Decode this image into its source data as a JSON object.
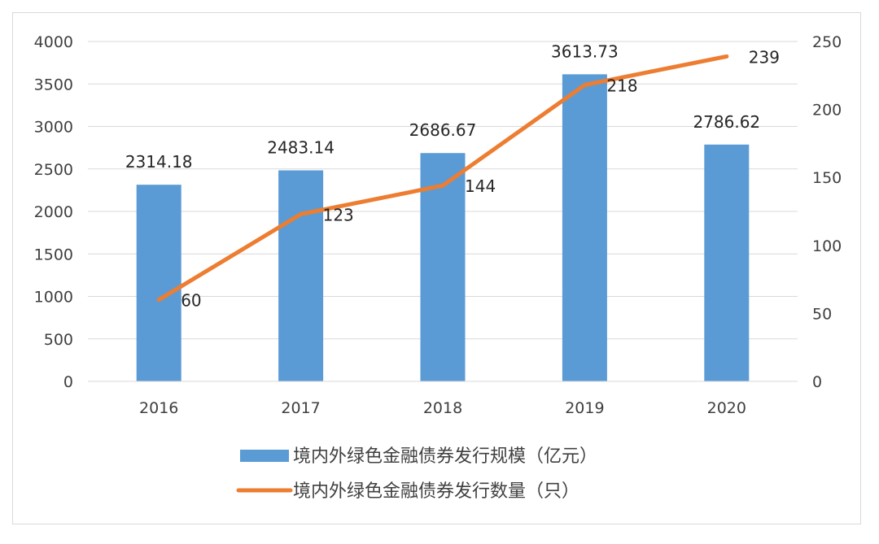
{
  "chart_data": {
    "type": "bar+line",
    "categories": [
      "2016",
      "2017",
      "2018",
      "2019",
      "2020"
    ],
    "series": [
      {
        "name": "境内外绿色金融债券发行规模（亿元）",
        "type": "bar",
        "axis": "left",
        "color": "#5b9bd5",
        "values": [
          2314.18,
          2483.14,
          2686.67,
          3613.73,
          2786.62
        ],
        "labels": [
          "2314.18",
          "2483.14",
          "2686.67",
          "3613.73",
          "2786.62"
        ]
      },
      {
        "name": "境内外绿色金融债券发行数量（只）",
        "type": "line",
        "axis": "right",
        "color": "#ed7d31",
        "values": [
          60,
          123,
          144,
          218,
          239
        ],
        "labels": [
          "60",
          "123",
          "144",
          "218",
          "239"
        ]
      }
    ],
    "y_left": {
      "ylim": [
        0,
        4000
      ],
      "ticks": [
        "0",
        "500",
        "1000",
        "1500",
        "2000",
        "2500",
        "3000",
        "3500",
        "4000"
      ]
    },
    "y_right": {
      "ylim": [
        0,
        250
      ],
      "ticks": [
        "0",
        "50",
        "100",
        "150",
        "200",
        "250"
      ]
    },
    "grid": true,
    "legend_position": "bottom"
  }
}
